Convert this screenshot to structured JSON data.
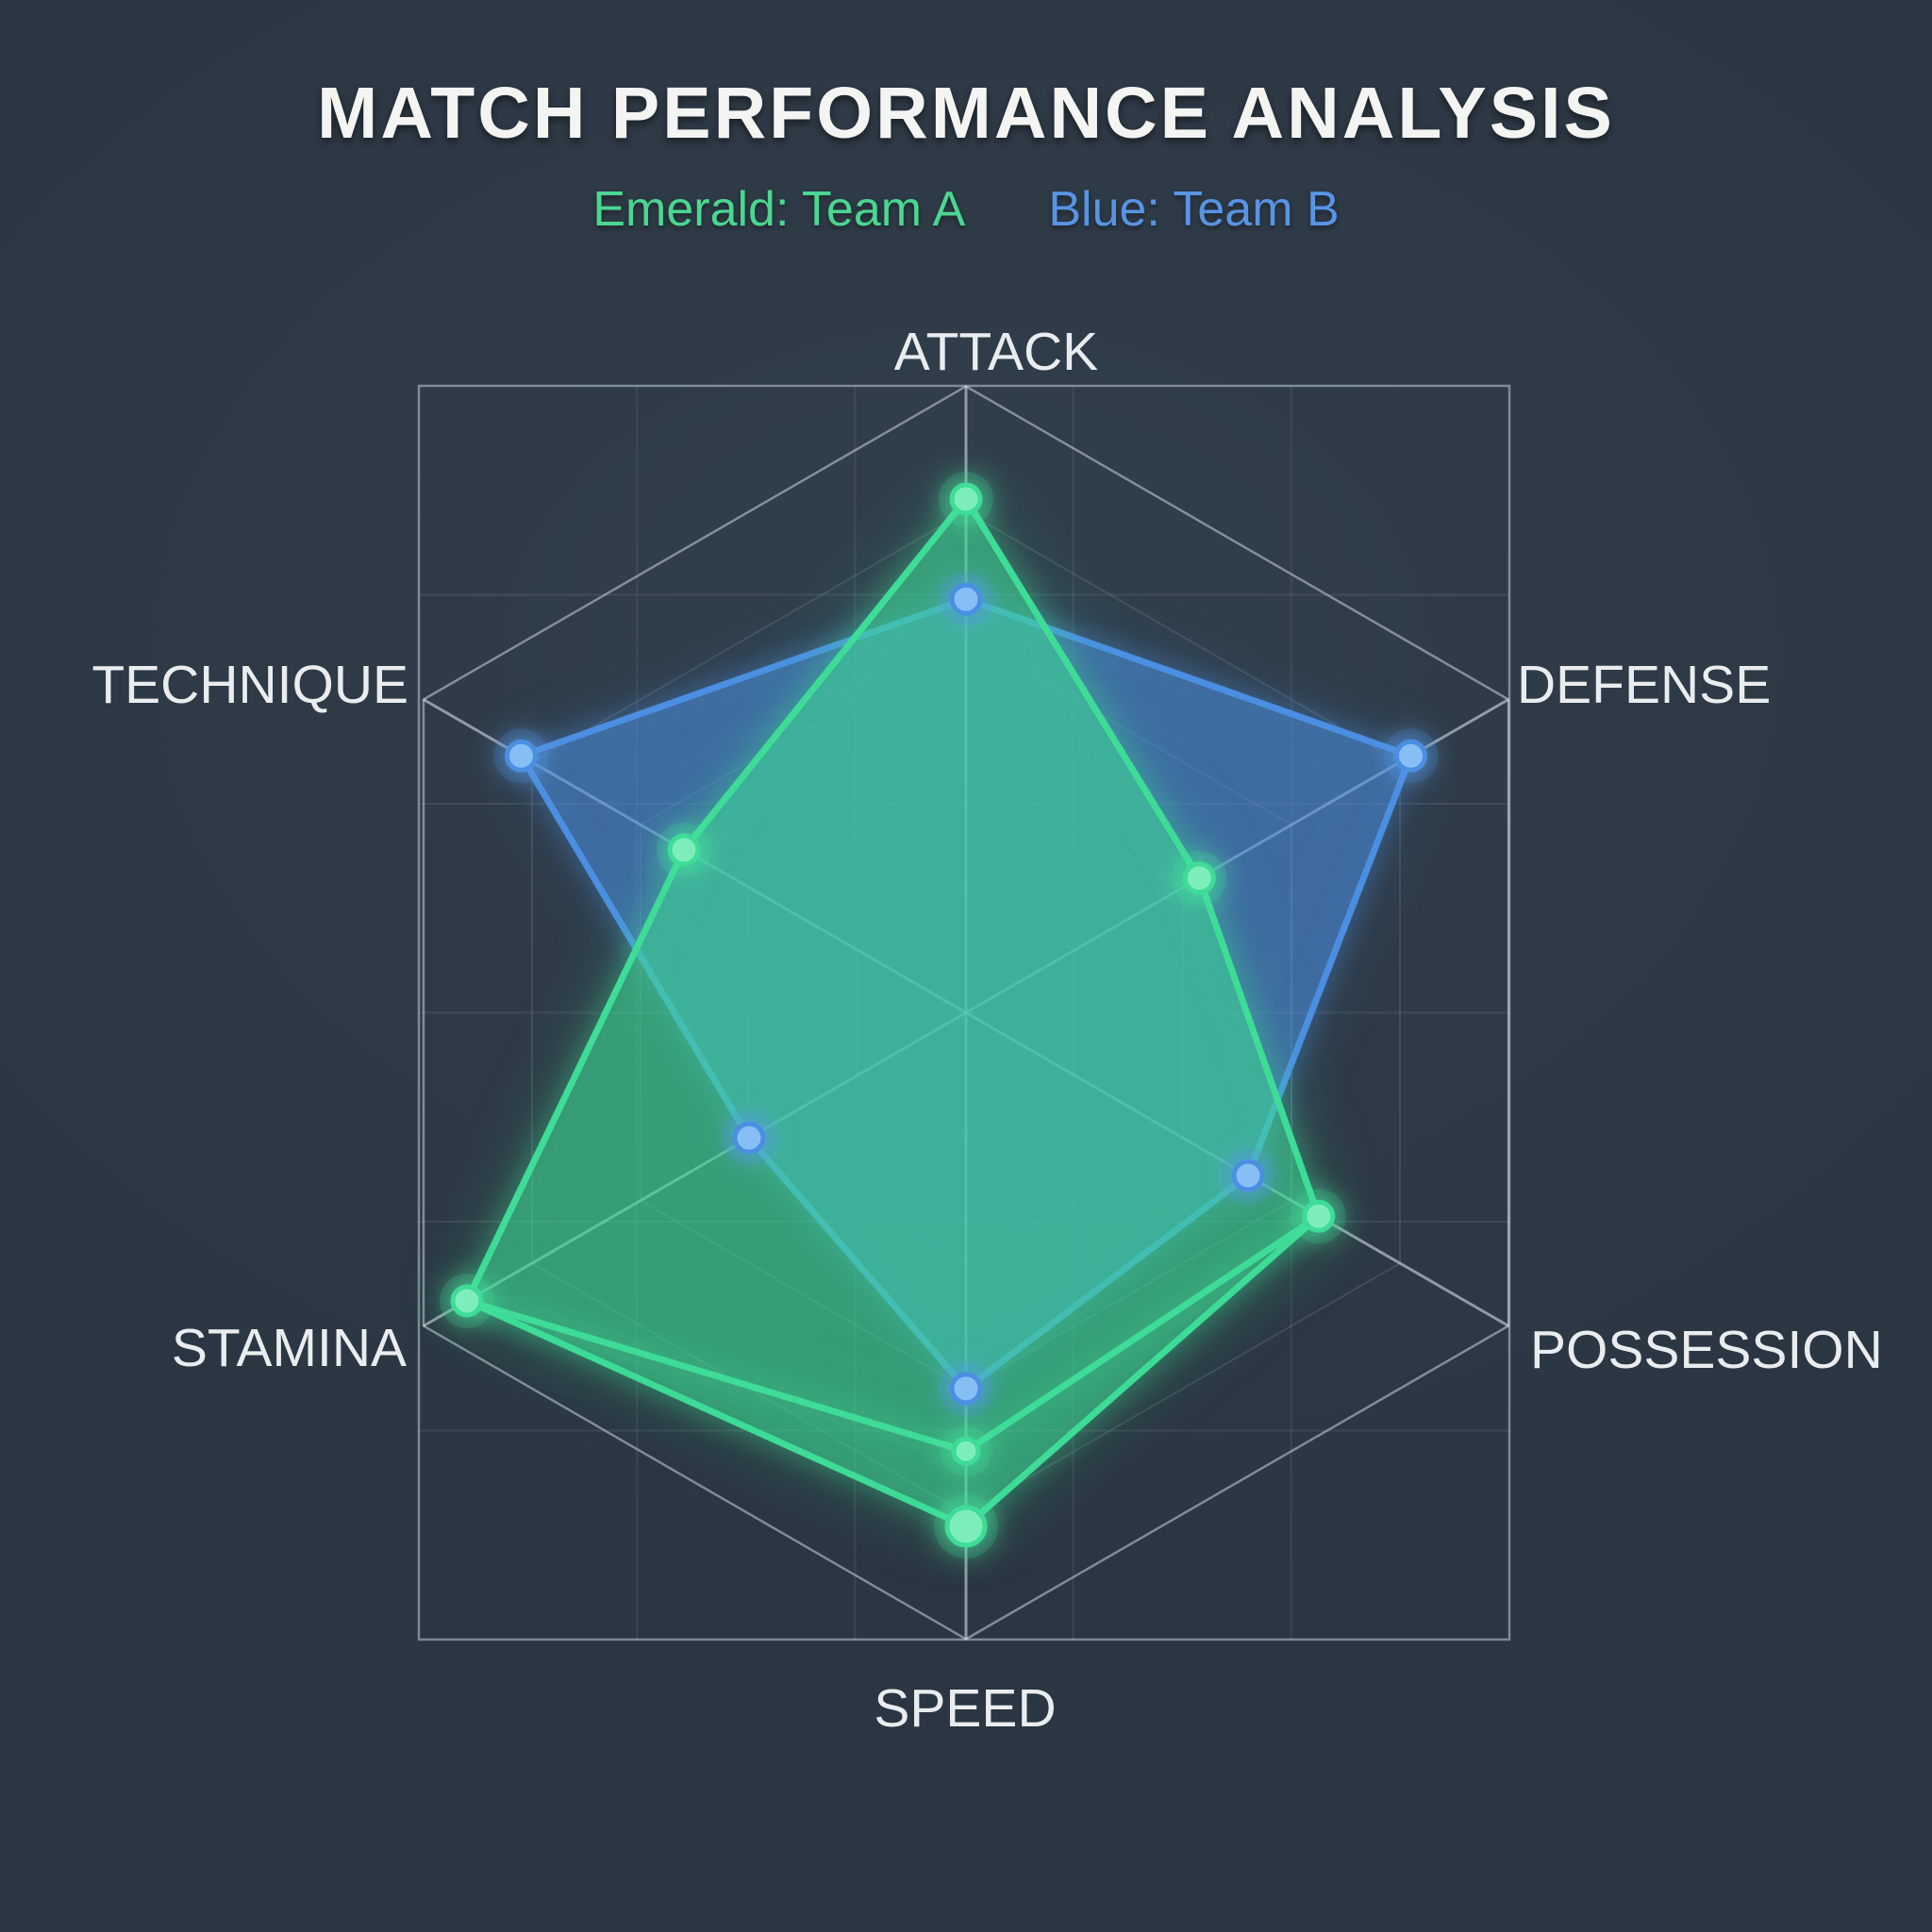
{
  "page": {
    "title_label": "MATCH PERFORMANCE ANALYSIS"
  },
  "legend": {
    "items": [
      {
        "label": "Emerald: Team A",
        "color": "#4bd691"
      },
      {
        "label": "Blue: Team B",
        "color": "#5894e4"
      }
    ]
  },
  "chart_data": {
    "type": "radar",
    "title": "MATCH PERFORMANCE ANALYSIS",
    "axes": [
      "ATTACK",
      "DEFENSE",
      "POSSESSION",
      "SPEED",
      "STAMINA",
      "TECHNIQUE"
    ],
    "scale": {
      "min": 0,
      "max": 100,
      "rings": [
        20,
        40,
        60,
        80
      ]
    },
    "grid": {
      "shown": true,
      "legend_position": "top"
    },
    "series": [
      {
        "name": "Team A",
        "color_key": "emerald",
        "values": [
          82,
          43,
          65,
          82,
          92,
          52
        ]
      },
      {
        "name": "Team B",
        "color_key": "blue",
        "values": [
          66,
          82,
          52,
          60,
          40,
          82
        ]
      }
    ],
    "extra_points": [
      {
        "series": "Team A",
        "color_key": "emerald",
        "axis": "SPEED",
        "value": 70
      }
    ],
    "colors": {
      "emerald": {
        "line": "#3edc97",
        "core": "#7deebb",
        "fill": "rgba(62,220,151,0.38)"
      },
      "blue": {
        "line": "#4b8fe2",
        "core": "#87bef5",
        "fill": "rgba(75,143,226,0.36)"
      }
    }
  }
}
